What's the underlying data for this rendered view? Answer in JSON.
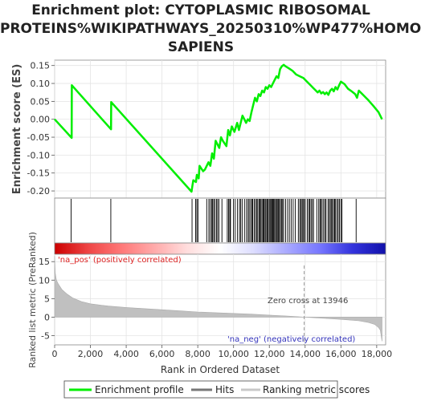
{
  "title_lines": [
    "Enrichment plot: CYTOPLASMIC RIBOSOMAL",
    "PROTEINS%WIKIPATHWAYS_20250310%WP477%HOMO",
    "SAPIENS"
  ],
  "chart_data": {
    "type": "line",
    "x_range": [
      0,
      18500
    ],
    "x_ticks": [
      0,
      2000,
      4000,
      6000,
      8000,
      10000,
      12000,
      14000,
      16000,
      18000
    ],
    "x_tick_labels": [
      "0",
      "2,000",
      "4,000",
      "6,000",
      "8,000",
      "10,000",
      "12,000",
      "14,000",
      "16,000",
      "18,000"
    ],
    "xlabel": "Rank in Ordered Dataset",
    "panels": [
      {
        "id": "es",
        "ylabel": "Enrichment score (ES)",
        "ylim": [
          -0.22,
          0.165
        ],
        "y_ticks": [
          -0.2,
          -0.15,
          -0.1,
          -0.05,
          0.0,
          0.05,
          0.1,
          0.15
        ],
        "y_tick_labels": [
          "-0.20",
          "-0.15",
          "-0.10",
          "-0.05",
          "0.00",
          "0.05",
          "0.10",
          "0.15"
        ],
        "series": [
          {
            "name": "Enrichment profile",
            "color": "#00ee00",
            "x": [
              0,
              950,
              960,
              3150,
              3160,
              7650,
              7700,
              7750,
              7900,
              7950,
              8050,
              8100,
              8300,
              8400,
              8600,
              8700,
              8800,
              8900,
              9000,
              9200,
              9300,
              9400,
              9600,
              9700,
              9800,
              9900,
              10050,
              10200,
              10300,
              10500,
              10600,
              10700,
              10800,
              10900,
              11000,
              11100,
              11200,
              11300,
              11400,
              11500,
              11600,
              11700,
              11800,
              11900,
              12000,
              12100,
              12200,
              12300,
              12400,
              12500,
              12600,
              12700,
              12800,
              12900,
              13000,
              13100,
              13300,
              13500,
              13700,
              13900,
              14100,
              14300,
              14500,
              14700,
              14800,
              14900,
              15000,
              15100,
              15200,
              15300,
              15400,
              15500,
              15600,
              15700,
              15800,
              15900,
              16000,
              16200,
              16400,
              16600,
              16800,
              16900,
              17000,
              17200,
              17500,
              17800,
              18100,
              18300
            ],
            "y": [
              0.0,
              -0.052,
              0.095,
              -0.028,
              0.048,
              -0.202,
              -0.185,
              -0.17,
              -0.175,
              -0.155,
              -0.165,
              -0.13,
              -0.145,
              -0.14,
              -0.12,
              -0.13,
              -0.095,
              -0.11,
              -0.06,
              -0.08,
              -0.05,
              -0.06,
              -0.075,
              -0.03,
              -0.045,
              -0.02,
              -0.035,
              -0.01,
              -0.03,
              0.01,
              0.0,
              -0.01,
              0.0,
              -0.005,
              0.02,
              0.04,
              0.06,
              0.05,
              0.07,
              0.065,
              0.08,
              0.075,
              0.09,
              0.085,
              0.095,
              0.09,
              0.1,
              0.11,
              0.12,
              0.115,
              0.14,
              0.148,
              0.152,
              0.148,
              0.145,
              0.142,
              0.135,
              0.125,
              0.12,
              0.115,
              0.105,
              0.095,
              0.085,
              0.075,
              0.08,
              0.072,
              0.076,
              0.07,
              0.075,
              0.068,
              0.08,
              0.085,
              0.078,
              0.09,
              0.083,
              0.095,
              0.105,
              0.098,
              0.085,
              0.078,
              0.07,
              0.06,
              0.08,
              0.07,
              0.055,
              0.038,
              0.02,
              0.0
            ]
          }
        ]
      },
      {
        "id": "hits",
        "legend_entry": "Hits",
        "hit_positions": [
          920,
          3140,
          7680,
          7880,
          7950,
          8010,
          8500,
          8620,
          8700,
          8780,
          8830,
          8890,
          8960,
          9050,
          9110,
          9180,
          9350,
          9650,
          9720,
          9790,
          9830,
          9990,
          10090,
          10220,
          10330,
          10400,
          10480,
          10610,
          10720,
          10810,
          10870,
          10950,
          11020,
          11070,
          11150,
          11220,
          11290,
          11350,
          11420,
          11470,
          11530,
          11590,
          11650,
          11700,
          11760,
          11810,
          11870,
          11920,
          11990,
          12040,
          12090,
          12140,
          12190,
          12240,
          12290,
          12350,
          12400,
          12450,
          12510,
          12560,
          12620,
          12680,
          12740,
          12800,
          12910,
          13020,
          13120,
          13220,
          13330,
          13450,
          13620,
          13700,
          13760,
          13830,
          13880,
          13940,
          14010,
          14120,
          14200,
          14260,
          14330,
          14400,
          14470,
          14650,
          14760,
          14830,
          14880,
          14950,
          15030,
          15110,
          15170,
          15280,
          15350,
          15410,
          15480,
          15520,
          15590,
          15650,
          15700,
          15780,
          15850,
          15920,
          16000,
          16060,
          16850
        ]
      },
      {
        "id": "gradient",
        "stops": [
          "#cc0000",
          "#ee4444",
          "#ff7777",
          "#ffaaaa",
          "#ffdddd",
          "#ffffff",
          "#ddddff",
          "#aaaaff",
          "#7777ff",
          "#3333dd",
          "#1111aa"
        ]
      },
      {
        "id": "metric",
        "ylabel": "Ranked list metric (PreRanked)",
        "ylim": [
          -7.5,
          17
        ],
        "y_ticks": [
          -5,
          0,
          5,
          10,
          15
        ],
        "y_tick_labels": [
          "-5",
          "0",
          "5",
          "10",
          "15"
        ],
        "series": [
          {
            "name": "Ranking metric scores",
            "color": "#c0c0c0",
            "x": [
              0,
              30,
              100,
              200,
              400,
              700,
              1000,
              1500,
              2000,
              3000,
              4000,
              5000,
              6000,
              7000,
              8000,
              9000,
              10000,
              11000,
              12000,
              13000,
              13946,
              15000,
              16000,
              17000,
              17500,
              17900,
              18100,
              18200,
              18250,
              18300
            ],
            "y": [
              16.5,
              12.0,
              10.0,
              9.0,
              7.5,
              6.2,
              5.2,
              4.2,
              3.6,
              3.0,
              2.6,
              2.3,
              2.0,
              1.7,
              1.4,
              1.2,
              1.0,
              0.8,
              0.55,
              0.3,
              0.0,
              -0.3,
              -0.6,
              -1.0,
              -1.4,
              -2.0,
              -2.8,
              -3.5,
              -5.0,
              -6.5
            ]
          }
        ],
        "annotations": {
          "pos_label": "'na_pos' (positively correlated)",
          "neg_label": "'na_neg' (negatively correlated)",
          "zero_cross_label": "Zero cross at 13946",
          "zero_cross_x": 13946
        }
      }
    ],
    "legend": {
      "placement": "bottom",
      "entries": [
        {
          "name": "Enrichment profile",
          "color": "#00ee00"
        },
        {
          "name": "Hits",
          "color": "#000000"
        },
        {
          "name": "Ranking metric scores",
          "color": "#c0c0c0"
        }
      ]
    },
    "grid": true
  }
}
